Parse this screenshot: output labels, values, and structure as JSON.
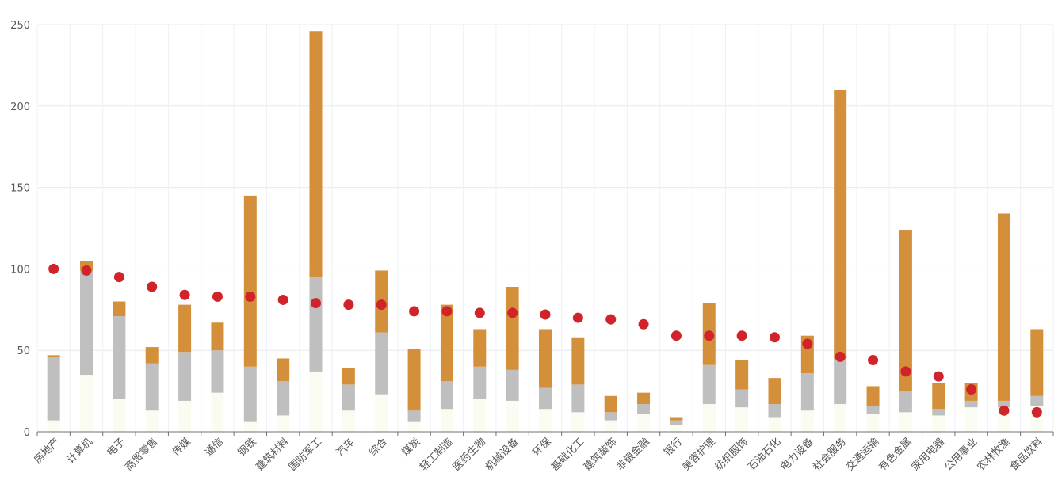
{
  "chart_data": {
    "type": "bar",
    "stacked": true,
    "grid": true,
    "ylim": [
      0,
      250
    ],
    "yticks": [
      0,
      50,
      100,
      150,
      200,
      250
    ],
    "categories": [
      "房地产",
      "计算机",
      "电子",
      "商贸零售",
      "传媒",
      "通信",
      "钢铁",
      "建筑材料",
      "国防军工",
      "汽车",
      "综合",
      "煤炭",
      "轻工制造",
      "医药生物",
      "机械设备",
      "环保",
      "基础化工",
      "建筑装饰",
      "非银金融",
      "银行",
      "美容护理",
      "纺织服饰",
      "石油石化",
      "电力设备",
      "社会服务",
      "交通运输",
      "有色金属",
      "家用电器",
      "公用事业",
      "农林牧渔",
      "食品饮料"
    ],
    "series": [
      {
        "color": "#fafcf2",
        "values": [
          7,
          35,
          20,
          13,
          19,
          24,
          6,
          10,
          37,
          13,
          23,
          6,
          14,
          20,
          19,
          14,
          12,
          7,
          11,
          4,
          17,
          15,
          9,
          13,
          17,
          11,
          12,
          10,
          15,
          15,
          16
        ]
      },
      {
        "color": "#bfbfbf",
        "values": [
          39,
          64,
          51,
          29,
          30,
          26,
          34,
          21,
          58,
          16,
          38,
          7,
          17,
          20,
          19,
          13,
          17,
          5,
          6,
          3,
          24,
          11,
          8,
          23,
          28,
          5,
          13,
          4,
          4,
          4,
          6
        ]
      },
      {
        "color": "#d48f3a",
        "values": [
          1,
          6,
          9,
          10,
          29,
          17,
          105,
          14,
          151,
          10,
          38,
          38,
          47,
          23,
          51,
          36,
          29,
          10,
          7,
          2,
          38,
          18,
          16,
          23,
          165,
          12,
          99,
          16,
          11,
          115,
          41
        ]
      }
    ],
    "markers": {
      "type": "scatter",
      "color": "#d0232a",
      "values": [
        100,
        99,
        95,
        89,
        84,
        83,
        83,
        81,
        79,
        78,
        78,
        74,
        74,
        73,
        73,
        72,
        70,
        69,
        66,
        59,
        59,
        59,
        58,
        54,
        46,
        44,
        37,
        34,
        26,
        13,
        12
      ]
    }
  }
}
